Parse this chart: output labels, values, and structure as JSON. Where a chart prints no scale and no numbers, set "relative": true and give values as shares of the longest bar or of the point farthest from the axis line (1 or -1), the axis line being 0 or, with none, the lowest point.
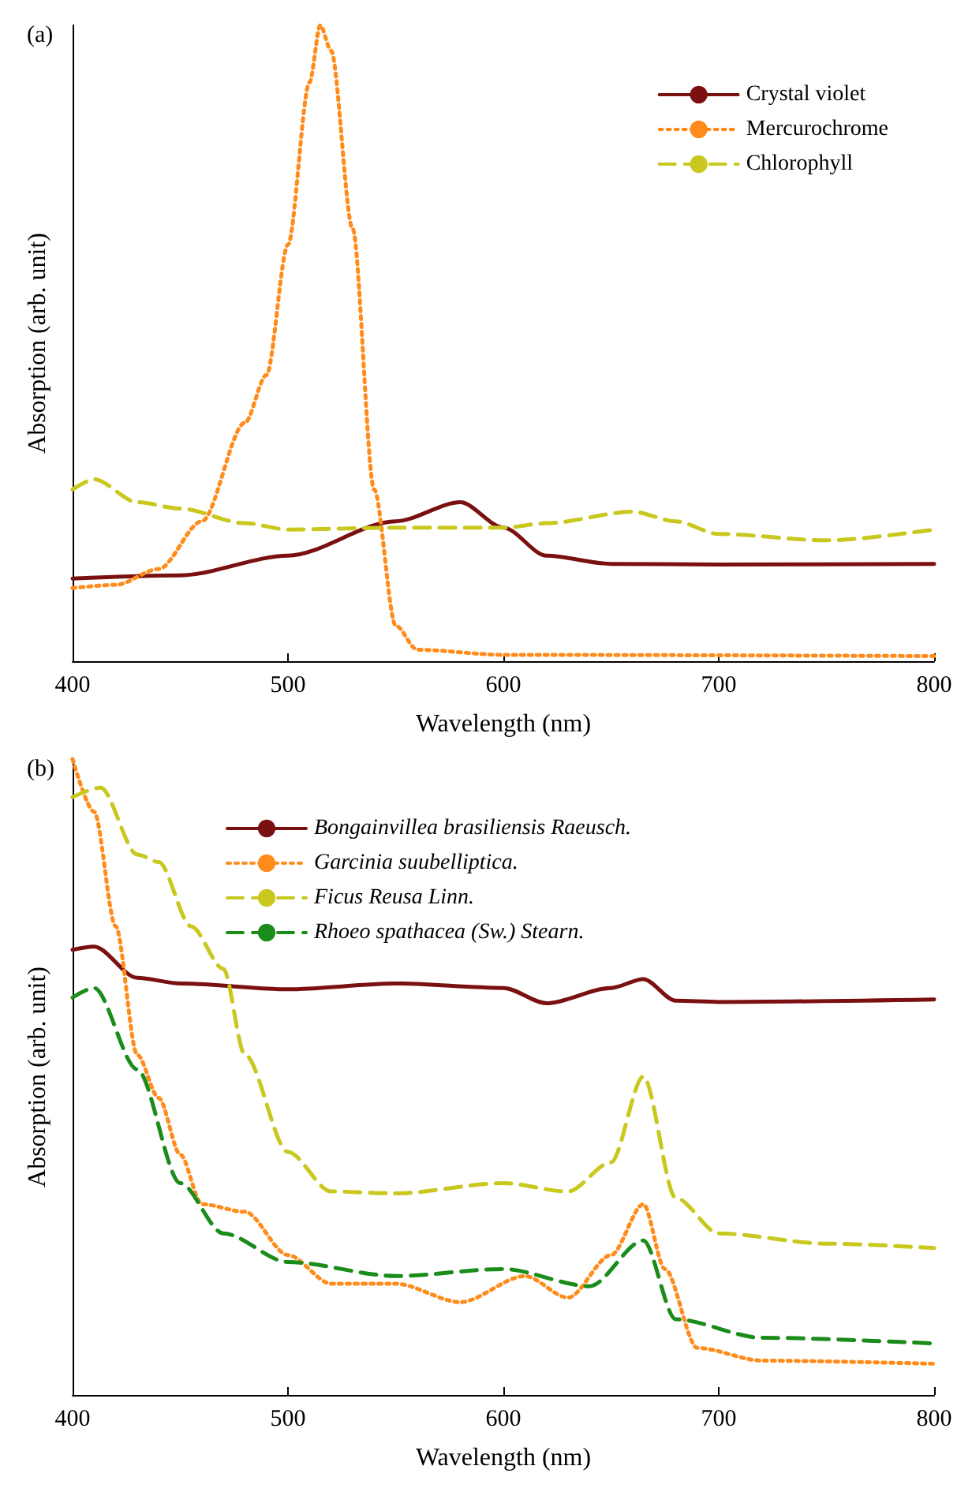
{
  "chart_data": [
    {
      "type": "line",
      "title": "(a)",
      "xlabel": "Wavelength (nm)",
      "ylabel": "Absorption (arb. unit)",
      "relative": true,
      "xlim": [
        400,
        800
      ],
      "xticks": [
        400,
        500,
        600,
        700,
        800
      ],
      "legend": "top right",
      "grid": false,
      "tick_labels": "x",
      "marker": "none",
      "series": [
        {
          "name": "Crystal violet",
          "color": "#7a1010",
          "line_style": "solid",
          "x": [
            400,
            450,
            500,
            550,
            580,
            600,
            620,
            650,
            700,
            800
          ],
          "values": [
            0.13,
            0.135,
            0.166,
            0.22,
            0.25,
            0.21,
            0.166,
            0.153,
            0.152,
            0.153
          ]
        },
        {
          "name": "Mercurochrome",
          "color": "#ff8c1a",
          "line_style": "dotted",
          "x": [
            400,
            420,
            440,
            460,
            480,
            490,
            500,
            510,
            515,
            520,
            530,
            540,
            550,
            560,
            600,
            800
          ],
          "values": [
            0.115,
            0.12,
            0.145,
            0.22,
            0.375,
            0.45,
            0.655,
            0.91,
            1,
            0.96,
            0.68,
            0.27,
            0.056,
            0.018,
            0.01,
            0.008
          ]
        },
        {
          "name": "Chlorophyll",
          "color": "#c8c81e",
          "line_style": "dashed",
          "x": [
            400,
            410,
            430,
            450,
            480,
            500,
            550,
            600,
            620,
            660,
            680,
            700,
            750,
            800
          ],
          "values": [
            0.27,
            0.286,
            0.25,
            0.24,
            0.217,
            0.207,
            0.21,
            0.21,
            0.217,
            0.235,
            0.22,
            0.2,
            0.19,
            0.207
          ]
        }
      ]
    },
    {
      "type": "line",
      "title": "(b)",
      "xlabel": "Wavelength (nm)",
      "ylabel": "Absorption (arb. unit)",
      "relative": true,
      "xlim": [
        400,
        800
      ],
      "xticks": [
        400,
        500,
        600,
        700,
        800
      ],
      "legend": "top",
      "grid": false,
      "tick_labels": "x",
      "marker": "none",
      "series": [
        {
          "name": "Bongainvillea brasiliensis Raeusch.",
          "color": "#7a1010",
          "line_style": "solid",
          "x": [
            400,
            410,
            430,
            450,
            500,
            550,
            600,
            620,
            650,
            665,
            680,
            700,
            800
          ],
          "values": [
            0.7,
            0.705,
            0.656,
            0.647,
            0.638,
            0.647,
            0.64,
            0.616,
            0.64,
            0.654,
            0.62,
            0.618,
            0.622
          ]
        },
        {
          "name": "Garcinia suubelliptica.",
          "color": "#ff8c1a",
          "line_style": "dotted",
          "x": [
            400,
            410,
            420,
            430,
            440,
            450,
            460,
            480,
            500,
            520,
            550,
            580,
            610,
            630,
            650,
            665,
            675,
            690,
            720,
            800
          ],
          "values": [
            1,
            0.917,
            0.737,
            0.535,
            0.467,
            0.378,
            0.3,
            0.288,
            0.22,
            0.175,
            0.175,
            0.146,
            0.187,
            0.153,
            0.22,
            0.3,
            0.198,
            0.074,
            0.054,
            0.049
          ]
        },
        {
          "name": "Ficus Reusa Linn.",
          "color": "#c8c81e",
          "line_style": "dashed",
          "x": [
            400,
            413,
            430,
            440,
            455,
            470,
            480,
            500,
            520,
            550,
            600,
            630,
            650,
            665,
            680,
            700,
            750,
            800
          ],
          "values": [
            0.94,
            0.955,
            0.85,
            0.838,
            0.737,
            0.67,
            0.535,
            0.382,
            0.32,
            0.317,
            0.333,
            0.32,
            0.366,
            0.501,
            0.31,
            0.254,
            0.238,
            0.231
          ]
        },
        {
          "name": "Rhoeo spathacea (Sw.) Stearn.",
          "color": "#1a8c1a",
          "line_style": "dashed",
          "x": [
            400,
            410,
            430,
            450,
            470,
            500,
            550,
            600,
            640,
            665,
            680,
            720,
            800
          ],
          "values": [
            0.625,
            0.64,
            0.512,
            0.333,
            0.254,
            0.209,
            0.187,
            0.198,
            0.171,
            0.243,
            0.119,
            0.09,
            0.081
          ]
        }
      ]
    }
  ]
}
